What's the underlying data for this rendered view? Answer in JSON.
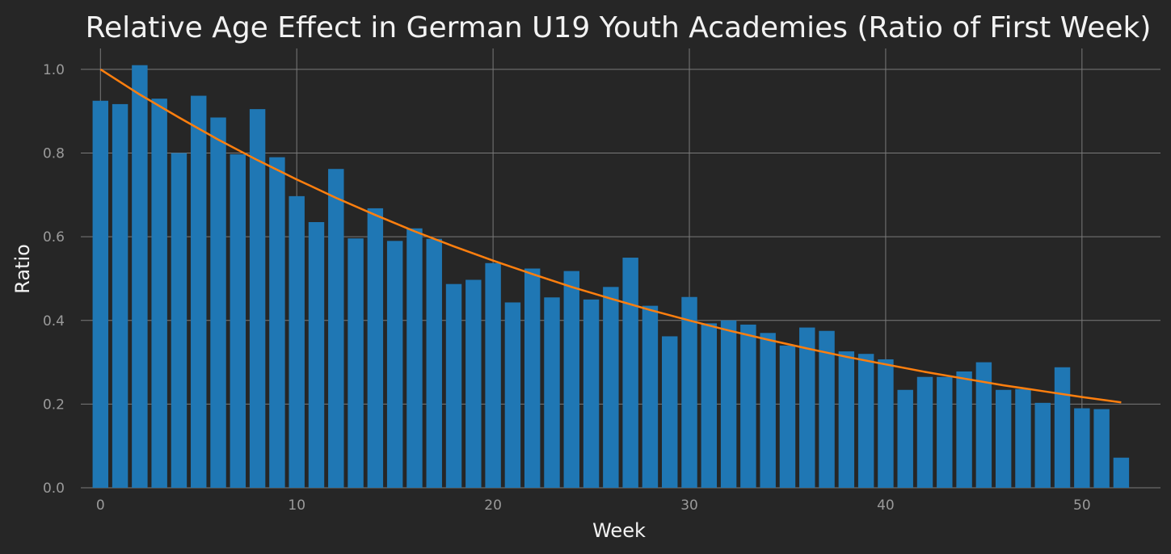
{
  "chart_data": {
    "type": "bar",
    "title": "Relative Age Effect in German U19 Youth Academies (Ratio of First Week)",
    "xlabel": "Week",
    "ylabel": "Ratio",
    "xlim": [
      -1,
      54
    ],
    "ylim": [
      0,
      1.05
    ],
    "xticks": [
      0,
      10,
      20,
      30,
      40,
      50
    ],
    "yticks": [
      0.0,
      0.2,
      0.4,
      0.6,
      0.8,
      1.0
    ],
    "grid": true,
    "colors": {
      "background": "#262626",
      "bars": "#1f77b4",
      "trend": "#ff7f0e",
      "grid": "#7a7a7a"
    },
    "series": [
      {
        "type": "bar",
        "x": [
          0,
          1,
          2,
          3,
          4,
          5,
          6,
          7,
          8,
          9,
          10,
          11,
          12,
          13,
          14,
          15,
          16,
          17,
          18,
          19,
          20,
          21,
          22,
          23,
          24,
          25,
          26,
          27,
          28,
          29,
          30,
          31,
          32,
          33,
          34,
          35,
          36,
          37,
          38,
          39,
          40,
          41,
          42,
          43,
          44,
          45,
          46,
          47,
          48,
          49,
          50,
          51,
          52
        ],
        "values": [
          0.925,
          0.917,
          1.01,
          0.93,
          0.8,
          0.937,
          0.885,
          0.797,
          0.905,
          0.79,
          0.697,
          0.635,
          0.762,
          0.596,
          0.668,
          0.59,
          0.62,
          0.595,
          0.487,
          0.497,
          0.537,
          0.443,
          0.524,
          0.455,
          0.518,
          0.45,
          0.48,
          0.55,
          0.435,
          0.362,
          0.456,
          0.393,
          0.4,
          0.39,
          0.37,
          0.34,
          0.383,
          0.375,
          0.326,
          0.32,
          0.307,
          0.234,
          0.265,
          0.265,
          0.278,
          0.3,
          0.234,
          0.236,
          0.203,
          0.288,
          0.19,
          0.188,
          0.072
        ]
      },
      {
        "type": "line",
        "x": [
          0,
          2,
          4,
          6,
          8,
          10,
          12,
          14,
          16,
          18,
          20,
          22,
          24,
          26,
          28,
          30,
          32,
          34,
          36,
          38,
          40,
          42,
          44,
          46,
          48,
          50,
          52
        ],
        "values": [
          1.0,
          0.94,
          0.885,
          0.832,
          0.783,
          0.737,
          0.693,
          0.652,
          0.613,
          0.577,
          0.543,
          0.511,
          0.48,
          0.452,
          0.425,
          0.4,
          0.376,
          0.354,
          0.333,
          0.313,
          0.295,
          0.277,
          0.261,
          0.245,
          0.231,
          0.217,
          0.204
        ]
      }
    ]
  }
}
